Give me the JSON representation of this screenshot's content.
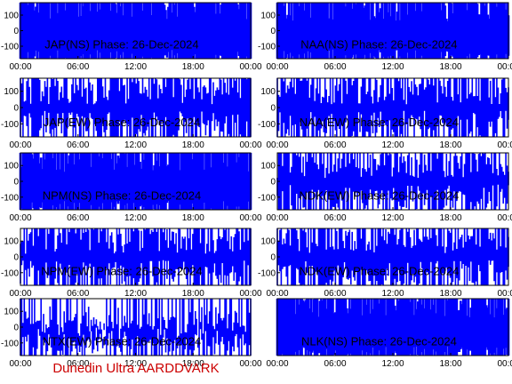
{
  "footer": "Dunedin Ultra AARDDVARK",
  "colors": {
    "trace": "#0000ff",
    "footer": "#cc0000",
    "axes": "#000000"
  },
  "chart_data": [
    {
      "type": "line",
      "title": "JAP(NS) Phase: 26-Dec-2024",
      "x_ticks": [
        "00:00",
        "06:00",
        "12:00",
        "18:00",
        "00:00"
      ],
      "y_ticks": [
        100,
        0,
        -100
      ],
      "xlim": [
        0,
        24
      ],
      "ylim": [
        -180,
        180
      ],
      "series": [
        {
          "pattern": "saturated"
        }
      ]
    },
    {
      "type": "line",
      "title": "NAA(NS) Phase: 26-Dec-2024",
      "x_ticks": [
        "00:00",
        "06:00",
        "12:00",
        "18:00",
        "00:00"
      ],
      "y_ticks": [
        100,
        0,
        -100
      ],
      "xlim": [
        0,
        24
      ],
      "ylim": [
        -180,
        180
      ],
      "series": [
        {
          "pattern": "saturated"
        }
      ]
    },
    {
      "type": "line",
      "title": "JAP(EW) Phase: 26-Dec-2024",
      "x_ticks": [
        "00:00",
        "06:00",
        "12:00",
        "18:00",
        "00:00"
      ],
      "y_ticks": [
        100,
        0,
        -100
      ],
      "xlim": [
        0,
        24
      ],
      "ylim": [
        -180,
        180
      ],
      "series": [
        {
          "pattern": "dense"
        }
      ]
    },
    {
      "type": "line",
      "title": "NAA(EW) Phase: 26-Dec-2024",
      "x_ticks": [
        "00:00",
        "06:00",
        "12:00",
        "18:00",
        "00:00"
      ],
      "y_ticks": [
        100,
        0,
        -100
      ],
      "xlim": [
        0,
        24
      ],
      "ylim": [
        -180,
        180
      ],
      "series": [
        {
          "pattern": "dense"
        }
      ]
    },
    {
      "type": "line",
      "title": "NPM(NS) Phase: 26-Dec-2024",
      "x_ticks": [
        "00:00",
        "06:00",
        "12:00",
        "18:00",
        "00:00"
      ],
      "y_ticks": [
        100,
        0,
        -100
      ],
      "xlim": [
        0,
        24
      ],
      "ylim": [
        -180,
        180
      ],
      "series": [
        {
          "pattern": "saturated"
        }
      ]
    },
    {
      "type": "line",
      "title": "NDK(EW) Phase: 26-Dec-2024",
      "x_ticks": [
        "00:00",
        "06:00",
        "12:00",
        "18:00",
        "00:00"
      ],
      "y_ticks": [
        100,
        0,
        -100
      ],
      "xlim": [
        0,
        24
      ],
      "ylim": [
        -180,
        180
      ],
      "series": [
        {
          "pattern": "dense"
        }
      ]
    },
    {
      "type": "line",
      "title": "NPM(EW) Phase: 26-Dec-2024",
      "x_ticks": [
        "00:00",
        "06:00",
        "12:00",
        "18:00",
        "00:00"
      ],
      "y_ticks": [
        100,
        0,
        -100
      ],
      "xlim": [
        0,
        24
      ],
      "ylim": [
        -180,
        180
      ],
      "series": [
        {
          "pattern": "dense"
        }
      ]
    },
    {
      "type": "line",
      "title": "NDK(EW) Phase: 26-Dec-2024",
      "x_ticks": [
        "00:00",
        "06:00",
        "12:00",
        "18:00",
        "00:00"
      ],
      "y_ticks": [
        100,
        0,
        -100
      ],
      "xlim": [
        0,
        24
      ],
      "ylim": [
        -180,
        180
      ],
      "series": [
        {
          "pattern": "dense"
        }
      ]
    },
    {
      "type": "line",
      "title": "NTX(EW) Phase: 26-Dec-2024",
      "x_ticks": [
        "00:00",
        "06:00",
        "12:00",
        "18:00",
        "00:00"
      ],
      "y_ticks": [
        100,
        0,
        -100
      ],
      "xlim": [
        0,
        24
      ],
      "ylim": [
        -180,
        180
      ],
      "series": [
        {
          "pattern": "sparse"
        }
      ]
    },
    {
      "type": "line",
      "title": "NLK(NS) Phase: 26-Dec-2024",
      "x_ticks": [
        "00:00",
        "06:00",
        "12:00",
        "18:00",
        "00:00"
      ],
      "y_ticks": [],
      "xlim": [
        0,
        24
      ],
      "ylim": [
        -180,
        180
      ],
      "series": [
        {
          "pattern": "saturated"
        }
      ]
    }
  ]
}
